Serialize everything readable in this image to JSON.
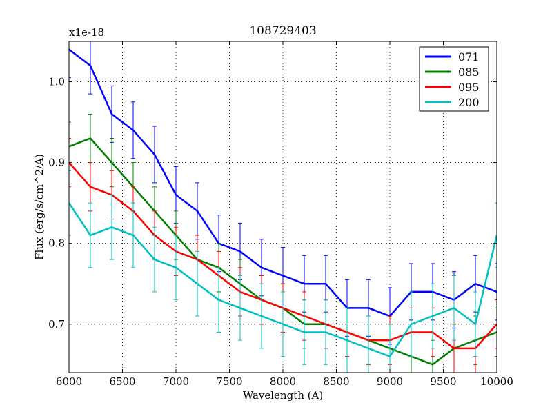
{
  "chart_data": {
    "type": "line",
    "title": "108729403",
    "xlabel": "Wavelength (A)",
    "ylabel": "Flux (erg/s/cm^2/A)",
    "y_offset_label": "x1e-18",
    "xlim": [
      6000,
      10000
    ],
    "ylim": [
      0.64,
      1.05
    ],
    "grid": true,
    "legend_position": "top-right",
    "x_ticks": [
      6000,
      6500,
      7000,
      7500,
      8000,
      8500,
      9000,
      9500,
      10000
    ],
    "x_tick_labels": [
      "6000",
      "6500",
      "7000",
      "7500",
      "8000",
      "8500",
      "9000",
      "9500",
      "10000"
    ],
    "y_ticks": [
      0.7,
      0.8,
      0.9,
      1.0
    ],
    "y_tick_labels": [
      "0.7",
      "0.8",
      "0.9",
      "1.0"
    ],
    "x": [
      6000,
      6200,
      6400,
      6600,
      6800,
      7000,
      7200,
      7400,
      7600,
      7800,
      8000,
      8200,
      8400,
      8600,
      8800,
      9000,
      9200,
      9400,
      9600,
      9800,
      10000
    ],
    "series": [
      {
        "name": "071",
        "color": "#0000ff",
        "values": [
          1.04,
          1.02,
          0.96,
          0.94,
          0.91,
          0.86,
          0.84,
          0.8,
          0.79,
          0.77,
          0.76,
          0.75,
          0.75,
          0.72,
          0.72,
          0.71,
          0.74,
          0.74,
          0.73,
          0.75,
          0.74
        ],
        "error": 0.035
      },
      {
        "name": "085",
        "color": "#008000",
        "values": [
          0.92,
          0.93,
          0.9,
          0.87,
          0.84,
          0.81,
          0.78,
          0.77,
          0.75,
          0.73,
          0.72,
          0.7,
          0.7,
          0.69,
          0.68,
          0.67,
          0.66,
          0.65,
          0.67,
          0.68,
          0.69
        ],
        "error": 0.03
      },
      {
        "name": "095",
        "color": "#ff0000",
        "values": [
          0.9,
          0.87,
          0.86,
          0.84,
          0.81,
          0.79,
          0.78,
          0.76,
          0.74,
          0.73,
          0.72,
          0.71,
          0.7,
          0.69,
          0.68,
          0.68,
          0.69,
          0.69,
          0.67,
          0.67,
          0.7
        ],
        "error": 0.03
      },
      {
        "name": "200",
        "color": "#00bfbf",
        "values": [
          0.85,
          0.81,
          0.82,
          0.81,
          0.78,
          0.77,
          0.75,
          0.73,
          0.72,
          0.71,
          0.7,
          0.69,
          0.69,
          0.68,
          0.67,
          0.66,
          0.7,
          0.71,
          0.72,
          0.7,
          0.81
        ],
        "error": 0.04
      }
    ]
  }
}
